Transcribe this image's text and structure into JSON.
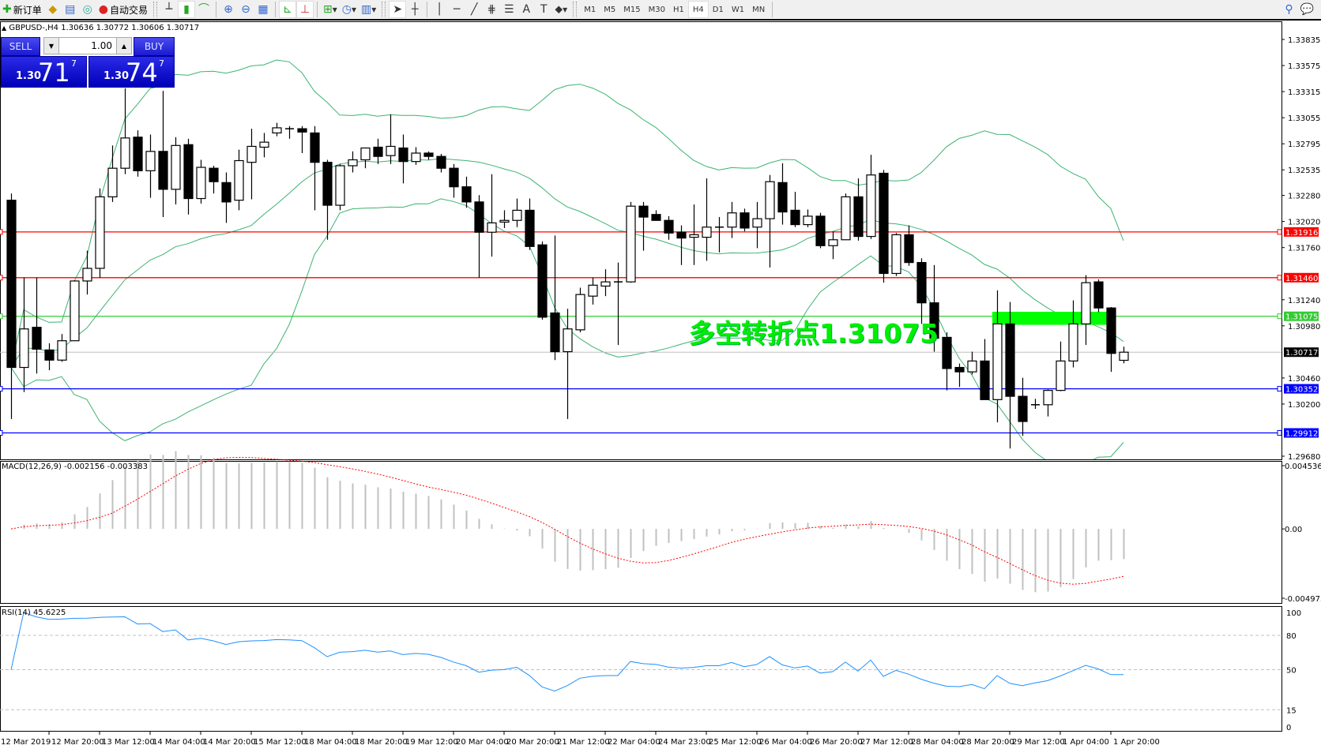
{
  "toolbar": {
    "new_order_label": "新订单",
    "auto_trading_label": "自动交易",
    "icons": [
      "new-order-icon",
      "meta-editor-icon",
      "navigator-icon",
      "signals-icon",
      "auto-trading-icon",
      "bar-chart-icon",
      "candlestick-icon",
      "line-chart-icon",
      "zoom-in-icon",
      "zoom-out-icon",
      "tile-windows-icon",
      "auto-scroll-icon",
      "chart-shift-icon",
      "indicators-icon",
      "periods-icon",
      "templates-icon",
      "cursor-icon",
      "crosshair-icon",
      "vertical-line-icon",
      "horizontal-line-icon",
      "trendline-icon",
      "fibonacci-icon",
      "fibo-lines-icon",
      "text-icon",
      "text-label-icon",
      "arrows-icon",
      "search-icon",
      "chat-icon"
    ],
    "timeframes": [
      "M1",
      "M5",
      "M15",
      "M30",
      "H1",
      "H4",
      "D1",
      "W1",
      "MN"
    ],
    "active_timeframe": "H4"
  },
  "symbol_info": "GBPUSD-,H4  1.30636 1.30772 1.30606 1.30717",
  "trade_panel": {
    "sell_label": "SELL",
    "buy_label": "BUY",
    "lot": "1.00",
    "sell_prefix": "1.30",
    "sell_big": "71",
    "sell_sup": "7",
    "buy_prefix": "1.30",
    "buy_big": "74",
    "buy_sup": "7",
    "sell_color": "#1a1ad0",
    "buy_color": "#1a1ad0"
  },
  "annotation": "多空转折点1.31075",
  "chart_data": {
    "type": "candlestick",
    "symbol": "GBPUSD-",
    "timeframe": "H4",
    "ylim": [
      1.2968,
      1.33835
    ],
    "price_ticks": [
      "1.33835",
      "1.33575",
      "1.33315",
      "1.33055",
      "1.32795",
      "1.32535",
      "1.32280",
      "1.32020",
      "1.31760",
      "1.31240",
      "1.30980",
      "1.30460",
      "1.30200",
      "1.29680"
    ],
    "time_labels": [
      "12 Mar 2019",
      "12 Mar 20:00",
      "13 Mar 12:00",
      "14 Mar 04:00",
      "14 Mar 20:00",
      "15 Mar 12:00",
      "18 Mar 04:00",
      "18 Mar 20:00",
      "19 Mar 12:00",
      "20 Mar 04:00",
      "20 Mar 20:00",
      "21 Mar 12:00",
      "22 Mar 04:00",
      "24 Mar 23:00",
      "25 Mar 12:00",
      "26 Mar 04:00",
      "26 Mar 20:00",
      "27 Mar 12:00",
      "28 Mar 04:00",
      "28 Mar 20:00",
      "29 Mar 12:00",
      "1 Apr 04:00",
      "1 Apr 20:00"
    ],
    "ohlc": [
      [
        1.32232,
        1.32299,
        1.30051,
        1.30565
      ],
      [
        1.30565,
        1.3146,
        1.30319,
        1.30949
      ],
      [
        1.30965,
        1.3146,
        1.30504,
        1.30747
      ],
      [
        1.30739,
        1.30806,
        1.30537,
        1.30638
      ],
      [
        1.30638,
        1.30898,
        1.30621,
        1.30831
      ],
      [
        1.30831,
        1.31435,
        1.30831,
        1.31427
      ],
      [
        1.31427,
        1.31729,
        1.31292,
        1.31553
      ],
      [
        1.31553,
        1.3235,
        1.3146,
        1.32266
      ],
      [
        1.32266,
        1.32778,
        1.32215,
        1.32551
      ],
      [
        1.32551,
        1.33348,
        1.32492,
        1.32853
      ],
      [
        1.32861,
        1.32929,
        1.32467,
        1.32526
      ],
      [
        1.32526,
        1.32887,
        1.32257,
        1.32719
      ],
      [
        1.32719,
        1.33323,
        1.32064,
        1.32341
      ],
      [
        1.32341,
        1.32861,
        1.3219,
        1.32778
      ],
      [
        1.32786,
        1.32845,
        1.3209,
        1.32249
      ],
      [
        1.32249,
        1.32635,
        1.32199,
        1.3256
      ],
      [
        1.32551,
        1.32576,
        1.32299,
        1.32417
      ],
      [
        1.32408,
        1.32509,
        1.32006,
        1.32215
      ],
      [
        1.32232,
        1.32736,
        1.32132,
        1.32627
      ],
      [
        1.3261,
        1.32945,
        1.32241,
        1.32769
      ],
      [
        1.32761,
        1.32903,
        1.3266,
        1.32811
      ],
      [
        1.32903,
        1.33004,
        1.3287,
        1.32954
      ],
      [
        1.32945,
        1.32971,
        1.32845,
        1.32945
      ],
      [
        1.32945,
        1.32971,
        1.32702,
        1.32912
      ],
      [
        1.32903,
        1.32971,
        1.32132,
        1.3261
      ],
      [
        1.3261,
        1.32635,
        1.31838,
        1.32182
      ],
      [
        1.32182,
        1.32593,
        1.32132,
        1.32576
      ],
      [
        1.32576,
        1.32719,
        1.32509,
        1.32635
      ],
      [
        1.32635,
        1.32753,
        1.32551,
        1.32753
      ],
      [
        1.32761,
        1.32845,
        1.32593,
        1.32669
      ],
      [
        1.32677,
        1.33088,
        1.32593,
        1.32769
      ],
      [
        1.32753,
        1.32887,
        1.324,
        1.32618
      ],
      [
        1.32618,
        1.32761,
        1.32585,
        1.32702
      ],
      [
        1.32702,
        1.32719,
        1.32635,
        1.32669
      ],
      [
        1.32669,
        1.32694,
        1.32509,
        1.32551
      ],
      [
        1.32551,
        1.32593,
        1.32257,
        1.32366
      ],
      [
        1.32366,
        1.32467,
        1.32157,
        1.32215
      ],
      [
        1.32215,
        1.32283,
        1.3146,
        1.31913
      ],
      [
        1.31913,
        1.32492,
        1.3167,
        1.32006
      ],
      [
        1.32014,
        1.32132,
        1.31955,
        1.32031
      ],
      [
        1.32031,
        1.32249,
        1.31964,
        1.32132
      ],
      [
        1.32132,
        1.32249,
        1.31737,
        1.31771
      ],
      [
        1.31787,
        1.31821,
        1.31041,
        1.31066
      ],
      [
        1.31108,
        1.3188,
        1.30638,
        1.30722
      ],
      [
        1.30722,
        1.3115,
        1.30051,
        1.30949
      ],
      [
        1.3094,
        1.3136,
        1.30915,
        1.31292
      ],
      [
        1.31276,
        1.3146,
        1.31192,
        1.31385
      ],
      [
        1.31376,
        1.31544,
        1.31276,
        1.31418
      ],
      [
        1.31418,
        1.31611,
        1.30789,
        1.31418
      ],
      [
        1.31418,
        1.32215,
        1.3141,
        1.32173
      ],
      [
        1.32173,
        1.32215,
        1.31729,
        1.32064
      ],
      [
        1.3209,
        1.32132,
        1.32031,
        1.32031
      ],
      [
        1.32031,
        1.32073,
        1.31838,
        1.31905
      ],
      [
        1.31913,
        1.31981,
        1.31586,
        1.31855
      ],
      [
        1.31863,
        1.3219,
        1.31586,
        1.31888
      ],
      [
        1.31863,
        1.3245,
        1.31628,
        1.31964
      ],
      [
        1.31964,
        1.32064,
        1.31712,
        1.31964
      ],
      [
        1.31964,
        1.32215,
        1.31855,
        1.32106
      ],
      [
        1.32106,
        1.32148,
        1.31922,
        1.31955
      ],
      [
        1.31964,
        1.32215,
        1.31754,
        1.32048
      ],
      [
        1.32048,
        1.32484,
        1.31561,
        1.32417
      ],
      [
        1.32408,
        1.32601,
        1.31989,
        1.32115
      ],
      [
        1.32132,
        1.32316,
        1.31964,
        1.31989
      ],
      [
        1.31989,
        1.3214,
        1.31964,
        1.32073
      ],
      [
        1.32073,
        1.32106,
        1.31754,
        1.31779
      ],
      [
        1.31779,
        1.31922,
        1.31645,
        1.31838
      ],
      [
        1.31838,
        1.32299,
        1.31838,
        1.32266
      ],
      [
        1.32266,
        1.3245,
        1.31829,
        1.31871
      ],
      [
        1.31871,
        1.32685,
        1.31846,
        1.32484
      ],
      [
        1.32501,
        1.32534,
        1.3141,
        1.31502
      ],
      [
        1.31502,
        1.31905,
        1.31477,
        1.31888
      ],
      [
        1.31888,
        1.31981,
        1.31578,
        1.31611
      ],
      [
        1.31611,
        1.31653,
        1.30999,
        1.31209
      ],
      [
        1.31209,
        1.31586,
        1.30722,
        1.30856
      ],
      [
        1.30865,
        1.30915,
        1.30336,
        1.30554
      ],
      [
        1.30565,
        1.30604,
        1.3037,
        1.30521
      ],
      [
        1.30521,
        1.30722,
        1.30495,
        1.30629
      ],
      [
        1.30629,
        1.30848,
        1.30244,
        1.30244
      ],
      [
        1.30244,
        1.31334,
        1.30017,
        1.30999
      ],
      [
        1.30999,
        1.31217,
        1.29757,
        1.30277
      ],
      [
        1.30277,
        1.30462,
        1.29883,
        1.30026
      ],
      [
        1.30193,
        1.30252,
        1.30152,
        1.30193
      ],
      [
        1.30193,
        1.30345,
        1.30076,
        1.30336
      ],
      [
        1.30336,
        1.30823,
        1.30328,
        1.30629
      ],
      [
        1.30629,
        1.31234,
        1.30565,
        1.30999
      ],
      [
        1.30999,
        1.31485,
        1.30789,
        1.3141
      ],
      [
        1.31418,
        1.31443,
        1.31116,
        1.31158
      ],
      [
        1.31158,
        1.31167,
        1.30521,
        1.30705
      ],
      [
        1.30636,
        1.30772,
        1.30606,
        1.30717
      ]
    ],
    "hlines": [
      {
        "price": "1.31916",
        "color": "#ff0000"
      },
      {
        "price": "1.31460",
        "color": "#ff0000"
      },
      {
        "price": "1.31075",
        "color": "#33cc33"
      },
      {
        "price": "1.30352",
        "color": "#0000ff"
      },
      {
        "price": "1.29912",
        "color": "#0000ff"
      }
    ],
    "bid": {
      "price": "1.30717",
      "color": "#c0c0c0"
    },
    "zone": {
      "from_bar": 78,
      "to_bar": 87,
      "top": 1.3112,
      "bottom": 1.3099,
      "color": "#00ff00"
    },
    "bands_color": "#3cb371",
    "macd": {
      "label": "MACD(12,26,9) -0.002156 -0.003383",
      "ylim": [
        -0.004973,
        0.004536
      ],
      "ticks": [
        "0.004536",
        "0.00",
        "-0.004973"
      ],
      "hist_color": "#c0c0c0",
      "signal_color": "#ff0000"
    },
    "rsi": {
      "label": "RSI(14) 45.6225",
      "ylim": [
        0,
        100
      ],
      "ticks": [
        "100",
        "80",
        "50",
        "15",
        "0"
      ],
      "levels": [
        80,
        50,
        15
      ],
      "color": "#1e90ff"
    }
  }
}
